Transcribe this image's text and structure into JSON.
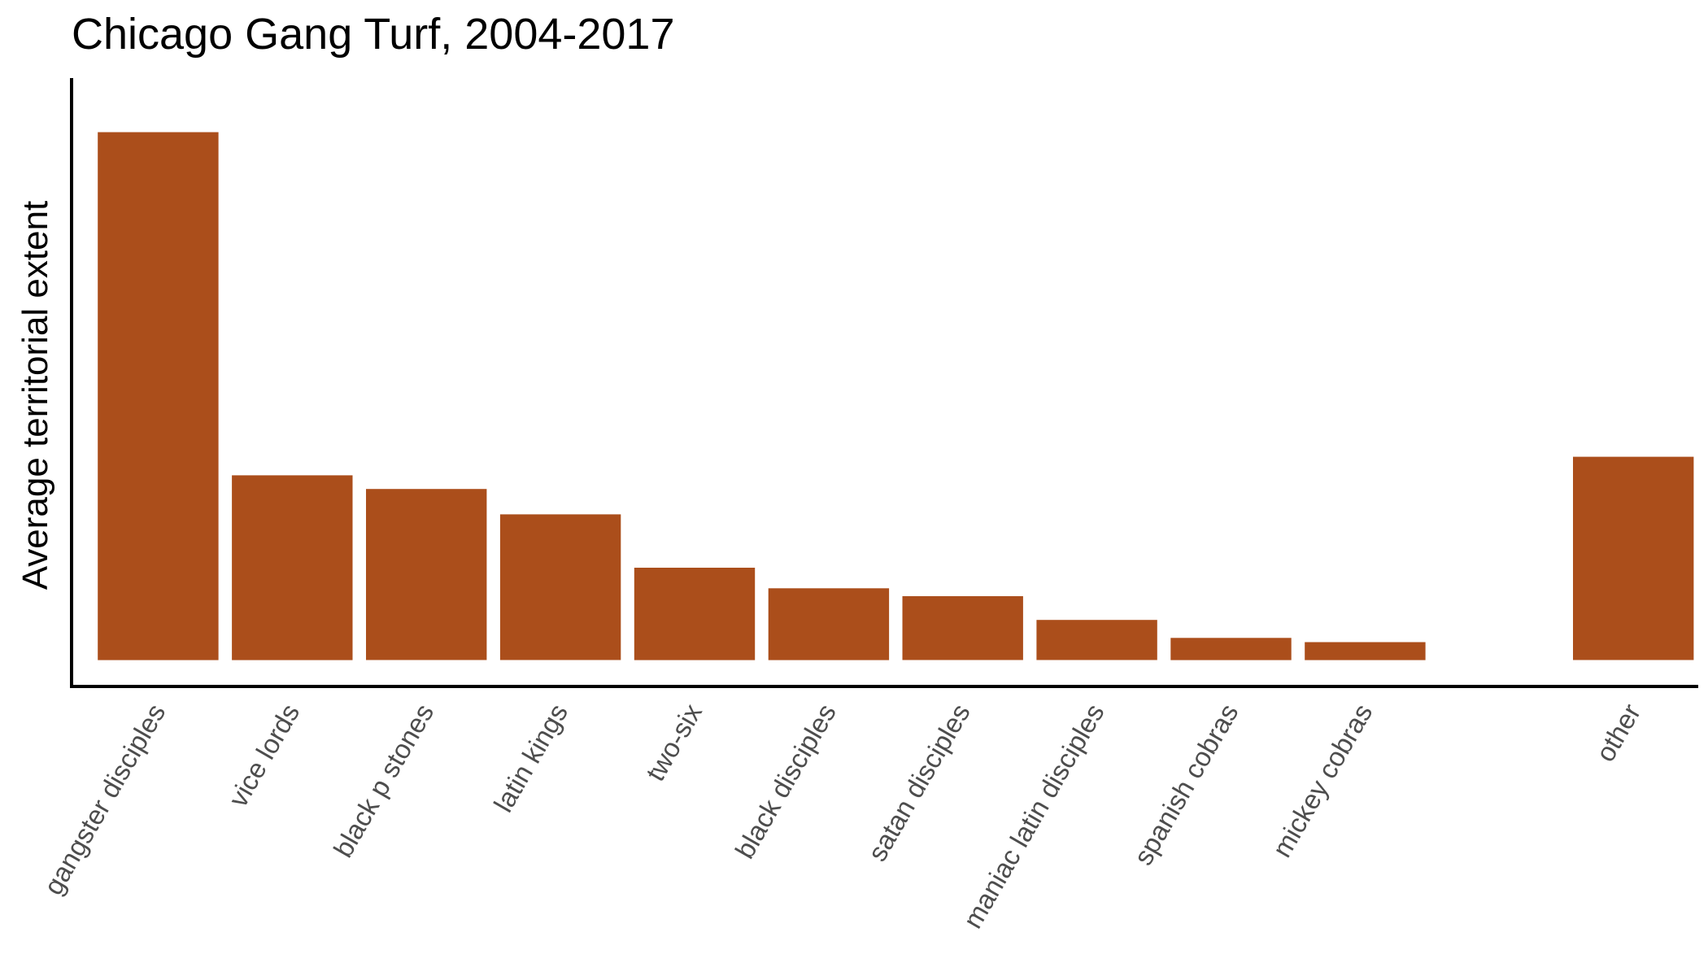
{
  "chart_data": {
    "type": "bar",
    "title": "Chicago Gang Turf, 2004-2017",
    "xlabel": "",
    "ylabel": "Average territorial extent",
    "categories": [
      "gangster disciples",
      "vice lords",
      "black p stones",
      "latin kings",
      "two-six",
      "black disciples",
      "satan disciples",
      "maniac latin disciples",
      "spanish cobras",
      "mickey cobras",
      "",
      "other"
    ],
    "values": [
      100,
      35,
      32.4,
      27.6,
      17.5,
      13.6,
      12.1,
      7.6,
      4.2,
      3.4,
      0,
      38.5
    ],
    "ylim": [
      -5,
      105
    ],
    "y_ticks_shown": false,
    "grid": false,
    "legend": "none",
    "bar_color": "#ab4e1b",
    "axis_color": "#000000",
    "tick_label_color": "#4d4d4d"
  }
}
